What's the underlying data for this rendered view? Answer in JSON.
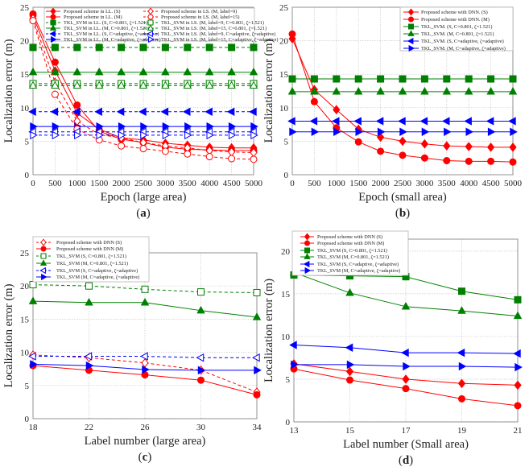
{
  "colors": {
    "red": "#ff0000",
    "green": "#008000",
    "blue": "#0000ff",
    "grid": "#c8c8c8",
    "frame": "#888888"
  },
  "chart_data": [
    {
      "type": "line",
      "panel_label": "a",
      "xlabel": "Epoch (large area)",
      "ylabel": "Localization error (m)",
      "x": [
        0,
        500,
        1000,
        1500,
        2000,
        2500,
        3000,
        3500,
        4000,
        4500,
        5000
      ],
      "xticks": [
        0,
        500,
        1000,
        1500,
        2000,
        2500,
        3000,
        3500,
        4000,
        4500,
        5000
      ],
      "yticks": [
        0,
        5,
        10,
        15,
        20,
        25
      ],
      "xlim": [
        0,
        5000
      ],
      "ylim": [
        0,
        25
      ],
      "grid": true,
      "legend_position": "top, two columns",
      "series": [
        {
          "name": "Proposed scheme in LL. (S)",
          "color": "red",
          "marker": "diamond",
          "filled": true,
          "dashed": false,
          "values": [
            23.7,
            15.5,
            9.2,
            6.8,
            5.5,
            5.2,
            4.7,
            4.4,
            4.1,
            4.0,
            4.0
          ]
        },
        {
          "name": "Proposed scheme in LL. (M)",
          "color": "red",
          "marker": "circle",
          "filled": true,
          "dashed": false,
          "values": [
            24.0,
            16.8,
            10.4,
            6.5,
            5.3,
            4.8,
            4.1,
            3.8,
            3.7,
            3.6,
            3.6
          ]
        },
        {
          "name": "TKL_SVM in LL. (S, C=0.801, ζ=1.521)",
          "color": "green",
          "marker": "square",
          "filled": true,
          "dashed": true,
          "values": [
            19.0,
            19.0,
            19.0,
            19.0,
            19.0,
            19.0,
            19.0,
            19.0,
            19.0,
            19.0,
            19.0
          ]
        },
        {
          "name": "TKL_SVM in LL. (M, C=0.801, ζ=1.521)",
          "color": "green",
          "marker": "triangle-up",
          "filled": true,
          "dashed": false,
          "values": [
            15.3,
            15.3,
            15.3,
            15.3,
            15.3,
            15.3,
            15.3,
            15.3,
            15.3,
            15.3,
            15.3
          ]
        },
        {
          "name": "TKL_SVM in LL. (S, C=adaptive, ζ=adaptive)",
          "color": "blue",
          "marker": "triangle-left",
          "filled": true,
          "dashed": true,
          "values": [
            9.4,
            9.4,
            9.4,
            9.4,
            9.4,
            9.4,
            9.4,
            9.4,
            9.4,
            9.4,
            9.4
          ]
        },
        {
          "name": "TKL_SVM in LL. (M, C=adaptive, ζ=adaptive)",
          "color": "blue",
          "marker": "triangle-right",
          "filled": true,
          "dashed": false,
          "values": [
            7.2,
            7.2,
            7.2,
            7.2,
            7.2,
            7.2,
            7.2,
            7.2,
            7.2,
            7.2,
            7.2
          ]
        },
        {
          "name": "Proposed scheme  in LS. (M, label=9)",
          "color": "red",
          "marker": "diamond",
          "filled": false,
          "dashed": true,
          "values": [
            23.3,
            13.8,
            8.0,
            6.0,
            5.5,
            4.8,
            4.3,
            4.0,
            3.6,
            3.4,
            3.3
          ]
        },
        {
          "name": "Proposed scheme in LS. (M, label=15)",
          "color": "red",
          "marker": "circle",
          "filled": false,
          "dashed": true,
          "values": [
            23.0,
            12.0,
            6.8,
            5.2,
            4.3,
            3.9,
            3.5,
            3.1,
            2.7,
            2.4,
            2.3
          ]
        },
        {
          "name": "TKL_SVM in LS. (M, label=9, C=0.801, ζ=1.521)",
          "color": "green",
          "marker": "square",
          "filled": false,
          "dashed": true,
          "values": [
            13.6,
            13.6,
            13.6,
            13.6,
            13.6,
            13.6,
            13.6,
            13.6,
            13.6,
            13.6,
            13.6
          ]
        },
        {
          "name": "TKL_SVM in LS. (M, label=15, C=0.801, ζ=1.521)",
          "color": "green",
          "marker": "triangle-up",
          "filled": false,
          "dashed": true,
          "values": [
            13.3,
            13.3,
            13.3,
            13.3,
            13.3,
            13.3,
            13.3,
            13.3,
            13.3,
            13.3,
            13.3
          ]
        },
        {
          "name": "TKL_SVM in LS. (M, label=9, C=adaptive, ζ=adaptive)",
          "color": "blue",
          "marker": "triangle-left",
          "filled": false,
          "dashed": true,
          "values": [
            6.4,
            6.4,
            6.4,
            6.4,
            6.4,
            6.4,
            6.4,
            6.4,
            6.4,
            6.4,
            6.4
          ]
        },
        {
          "name": "TKL_SVM in LS. (M, label=15, C=adaptive, ζ=adaptive)",
          "color": "blue",
          "marker": "triangle-right",
          "filled": false,
          "dashed": true,
          "values": [
            5.9,
            5.9,
            5.9,
            5.9,
            5.9,
            5.9,
            5.9,
            5.9,
            5.9,
            5.9,
            5.9
          ]
        }
      ]
    },
    {
      "type": "line",
      "panel_label": "b",
      "xlabel": "Epoch (small area)",
      "ylabel": "Localization error (m)",
      "x": [
        0,
        500,
        1000,
        1500,
        2000,
        2500,
        3000,
        3500,
        4000,
        4500,
        5000
      ],
      "xticks": [
        0,
        500,
        1000,
        1500,
        2000,
        2500,
        3000,
        3500,
        4000,
        4500,
        5000
      ],
      "yticks": [
        0,
        5,
        10,
        15,
        20,
        25
      ],
      "xlim": [
        0,
        5000
      ],
      "ylim": [
        0,
        25
      ],
      "grid": true,
      "legend_position": "top-right",
      "series": [
        {
          "name": "Proposed scheme with DNN. (S)",
          "color": "red",
          "marker": "diamond",
          "filled": true,
          "dashed": false,
          "values": [
            20.3,
            12.7,
            9.7,
            6.8,
            5.6,
            5.0,
            4.6,
            4.3,
            4.2,
            4.1,
            4.1
          ]
        },
        {
          "name": "Proposed scheme with DNN. (M)",
          "color": "red",
          "marker": "circle",
          "filled": true,
          "dashed": false,
          "values": [
            21.0,
            10.9,
            7.0,
            4.9,
            3.5,
            2.9,
            2.5,
            2.1,
            2.0,
            2.0,
            1.9
          ]
        },
        {
          "name": "TKL_SVM. (S, C=0.801, ζ=1.521)",
          "color": "green",
          "marker": "square",
          "filled": true,
          "dashed": false,
          "values": [
            14.3,
            14.3,
            14.3,
            14.3,
            14.3,
            14.3,
            14.3,
            14.3,
            14.3,
            14.3,
            14.3
          ]
        },
        {
          "name": "TKL_SVM. (M, C=0.801, ζ=1.521)",
          "color": "green",
          "marker": "triangle-up",
          "filled": true,
          "dashed": false,
          "values": [
            12.4,
            12.4,
            12.4,
            12.4,
            12.4,
            12.4,
            12.4,
            12.4,
            12.4,
            12.4,
            12.4
          ]
        },
        {
          "name": "TKL_SVM. (S, C=adaptive, ζ=adaptive)",
          "color": "blue",
          "marker": "triangle-left",
          "filled": true,
          "dashed": false,
          "values": [
            8.0,
            8.0,
            8.0,
            8.0,
            8.0,
            8.0,
            8.0,
            8.0,
            8.0,
            8.0,
            8.0
          ]
        },
        {
          "name": "TKL_SVM. (M, C=adaptive, ζ=adaptive)",
          "color": "blue",
          "marker": "triangle-right",
          "filled": true,
          "dashed": false,
          "values": [
            6.4,
            6.4,
            6.4,
            6.4,
            6.4,
            6.4,
            6.4,
            6.4,
            6.4,
            6.4,
            6.4
          ]
        }
      ]
    },
    {
      "type": "line",
      "panel_label": "c",
      "xlabel": "Label number (large area)",
      "ylabel": "Localization error (m)",
      "x": [
        18,
        22,
        26,
        30,
        34
      ],
      "xticks": [
        18,
        22,
        26,
        30,
        34
      ],
      "yticks": [
        0,
        5,
        10,
        15,
        20,
        25
      ],
      "xlim": [
        18,
        34
      ],
      "ylim": [
        0,
        25
      ],
      "grid": true,
      "legend_position": "top-left",
      "series": [
        {
          "name": "Proposed scheme with DNN (S)",
          "color": "red",
          "marker": "diamond",
          "filled": false,
          "dashed": true,
          "values": [
            9.6,
            9.2,
            8.4,
            7.3,
            4.0
          ]
        },
        {
          "name": "Proposed scheme with DNN (M)",
          "color": "red",
          "marker": "circle",
          "filled": true,
          "dashed": false,
          "values": [
            8.0,
            7.3,
            6.6,
            5.8,
            3.6
          ]
        },
        {
          "name": "TKL_SVM (S, C=0.801, ζ=1.521)",
          "color": "green",
          "marker": "square",
          "filled": false,
          "dashed": true,
          "values": [
            20.2,
            20.0,
            19.5,
            19.1,
            19.0
          ]
        },
        {
          "name": "TKL_SVM (M, C=0.801, ζ=1.521)",
          "color": "green",
          "marker": "triangle-up",
          "filled": true,
          "dashed": false,
          "values": [
            17.7,
            17.5,
            17.5,
            16.3,
            15.3
          ]
        },
        {
          "name": "TKL_SVM (S, C=adaptive, ζ=adaptive)",
          "color": "blue",
          "marker": "triangle-left",
          "filled": false,
          "dashed": true,
          "values": [
            9.4,
            9.4,
            9.4,
            9.2,
            9.2
          ]
        },
        {
          "name": "TKL_SVM (M, C=adaptive, ζ=adaptive)",
          "color": "blue",
          "marker": "triangle-right",
          "filled": true,
          "dashed": false,
          "values": [
            8.2,
            8.0,
            7.4,
            7.3,
            7.3
          ]
        }
      ]
    },
    {
      "type": "line",
      "panel_label": "d",
      "xlabel": "Label number (Small area)",
      "ylabel": "Localization error (m)",
      "x": [
        13,
        15,
        17,
        19,
        21
      ],
      "xticks": [
        13,
        15,
        17,
        19,
        21
      ],
      "yticks": [
        0,
        5,
        10,
        15,
        20
      ],
      "xlim": [
        13,
        21
      ],
      "ylim": [
        0,
        21.4
      ],
      "grid": true,
      "legend_position": "top-left",
      "series": [
        {
          "name": "Proposed scheme with DNN (S)",
          "color": "red",
          "marker": "diamond",
          "filled": true,
          "dashed": false,
          "values": [
            6.8,
            5.9,
            5.0,
            4.5,
            4.3
          ]
        },
        {
          "name": "Proposed scheme with DNN (M)",
          "color": "red",
          "marker": "circle",
          "filled": true,
          "dashed": false,
          "values": [
            6.2,
            4.9,
            3.9,
            2.7,
            1.9
          ]
        },
        {
          "name": "TKL_SVM (S, C=0.801, ζ=1.521)",
          "color": "green",
          "marker": "square",
          "filled": true,
          "dashed": false,
          "values": [
            17.2,
            17.1,
            17.0,
            15.3,
            14.3
          ]
        },
        {
          "name": "TKL_SVM (M, C=0.801, ζ=1.521)",
          "color": "green",
          "marker": "triangle-up",
          "filled": true,
          "dashed": false,
          "values": [
            17.5,
            15.1,
            13.5,
            13.0,
            12.4
          ]
        },
        {
          "name": "TKL_SVM (S, C=adaptive, ζ=adaptive)",
          "color": "blue",
          "marker": "triangle-left",
          "filled": true,
          "dashed": false,
          "values": [
            9.0,
            8.7,
            8.1,
            8.1,
            8.0
          ]
        },
        {
          "name": "TKL_SVM (M, C=adaptive, ζ=adaptive)",
          "color": "blue",
          "marker": "triangle-right",
          "filled": true,
          "dashed": false,
          "values": [
            6.7,
            6.7,
            6.5,
            6.5,
            6.4
          ]
        }
      ]
    }
  ]
}
